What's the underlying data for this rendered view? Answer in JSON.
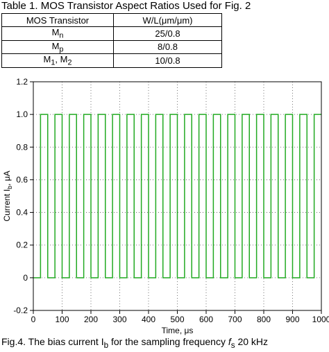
{
  "table": {
    "caption": "Table 1. MOS Transistor Aspect Ratios Used for Fig. 2",
    "headers": [
      "MOS Transistor",
      "W/L(μm/μm)"
    ],
    "rows": [
      {
        "name": "M",
        "sub": "n",
        "name2": "",
        "sub2": "",
        "value": "25/0.8"
      },
      {
        "name": "M",
        "sub": "p",
        "name2": "",
        "sub2": "",
        "value": "8/0.8"
      },
      {
        "name": "M",
        "sub": "1",
        "name2": ", M",
        "sub2": "2",
        "value": "10/0.8"
      }
    ]
  },
  "chart_data": {
    "type": "line",
    "xlabel": "Time, μs",
    "ylabel_parts": [
      "Current I",
      "b",
      ", μA"
    ],
    "xlim": [
      0,
      1000
    ],
    "ylim": [
      -0.2,
      1.2
    ],
    "x_ticks": [
      0,
      100,
      200,
      300,
      400,
      500,
      600,
      700,
      800,
      900,
      1000
    ],
    "y_ticks": [
      -0.2,
      0,
      0.2,
      0.4,
      0.6,
      0.8,
      1.0,
      1.2
    ],
    "y_tick_labels": [
      "-0.2",
      "0",
      "0.2",
      "0.4",
      "0.6",
      "0.8",
      "1.0",
      "1.2"
    ],
    "grid": true,
    "series": [
      {
        "color": "#22aa22",
        "waveform": "square",
        "low": 0,
        "high": 1.0,
        "period_us": 50,
        "high_duration_us": 25,
        "first_rise_us": 25
      }
    ]
  },
  "figure_caption": "Fig.4. The bias current I",
  "figure_caption_sub": "b",
  "figure_caption_rest": " for the sampling frequency ",
  "figure_caption_fs": "f",
  "figure_caption_fs_sub": "s",
  "figure_caption_end": " 20 kHz"
}
